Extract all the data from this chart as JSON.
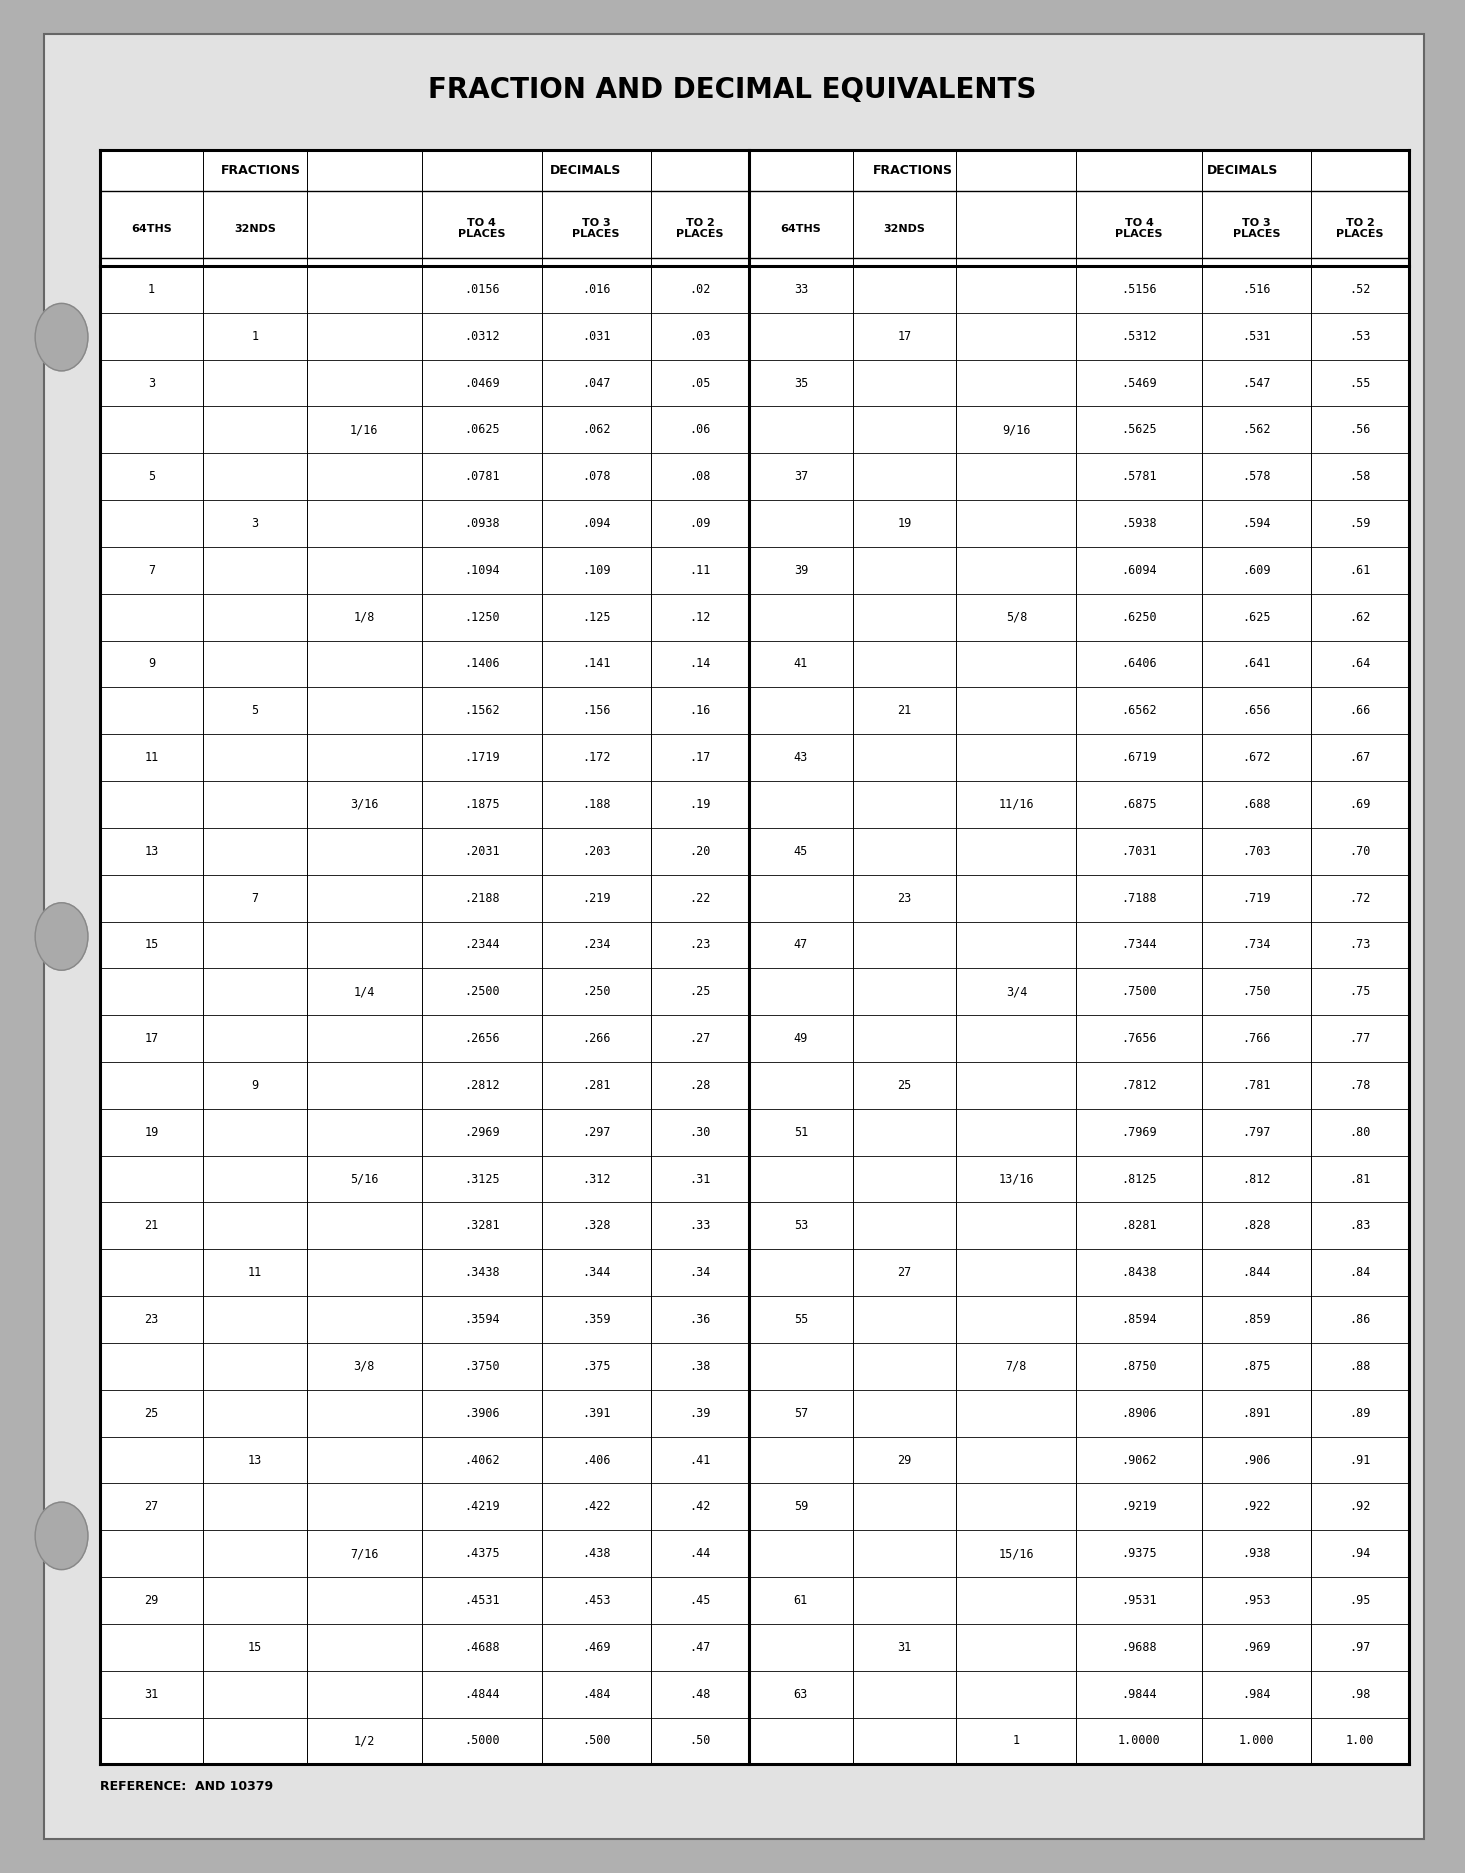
{
  "title": "FRACTION AND DECIMAL EQUIVALENTS",
  "reference": "REFERENCE:  AND 10379",
  "bg_color": "#b0b0b0",
  "paper_color": "#e2e2e2",
  "col_headers_row1": [
    "FRACTIONS",
    "DECIMALS",
    "FRACTIONS",
    "DECIMALS"
  ],
  "col_headers_row2": [
    "64THS",
    "32NDS",
    "",
    "TO 4\nPLACES",
    "TO 3\nPLACES",
    "TO 2\nPLACES",
    "64THS",
    "32NDS",
    "",
    "TO 4\nPLACES",
    "TO 3\nPLACES",
    "TO 2\nPLACES"
  ],
  "rows": [
    [
      "1",
      "",
      "",
      ".0156",
      ".016",
      ".02",
      "33",
      "",
      "",
      ".5156",
      ".516",
      ".52"
    ],
    [
      "",
      "1",
      "",
      ".0312",
      ".031",
      ".03",
      "",
      "17",
      "",
      ".5312",
      ".531",
      ".53"
    ],
    [
      "3",
      "",
      "",
      ".0469",
      ".047",
      ".05",
      "35",
      "",
      "",
      ".5469",
      ".547",
      ".55"
    ],
    [
      "",
      "",
      "1/16",
      ".0625",
      ".062",
      ".06",
      "",
      "",
      "9/16",
      ".5625",
      ".562",
      ".56"
    ],
    [
      "5",
      "",
      "",
      ".0781",
      ".078",
      ".08",
      "37",
      "",
      "",
      ".5781",
      ".578",
      ".58"
    ],
    [
      "",
      "3",
      "",
      ".0938",
      ".094",
      ".09",
      "",
      "19",
      "",
      ".5938",
      ".594",
      ".59"
    ],
    [
      "7",
      "",
      "",
      ".1094",
      ".109",
      ".11",
      "39",
      "",
      "",
      ".6094",
      ".609",
      ".61"
    ],
    [
      "",
      "",
      "1/8",
      ".1250",
      ".125",
      ".12",
      "",
      "",
      "5/8",
      ".6250",
      ".625",
      ".62"
    ],
    [
      "9",
      "",
      "",
      ".1406",
      ".141",
      ".14",
      "41",
      "",
      "",
      ".6406",
      ".641",
      ".64"
    ],
    [
      "",
      "5",
      "",
      ".1562",
      ".156",
      ".16",
      "",
      "21",
      "",
      ".6562",
      ".656",
      ".66"
    ],
    [
      "11",
      "",
      "",
      ".1719",
      ".172",
      ".17",
      "43",
      "",
      "",
      ".6719",
      ".672",
      ".67"
    ],
    [
      "",
      "",
      "3/16",
      ".1875",
      ".188",
      ".19",
      "",
      "",
      "11/16",
      ".6875",
      ".688",
      ".69"
    ],
    [
      "13",
      "",
      "",
      ".2031",
      ".203",
      ".20",
      "45",
      "",
      "",
      ".7031",
      ".703",
      ".70"
    ],
    [
      "",
      "7",
      "",
      ".2188",
      ".219",
      ".22",
      "",
      "23",
      "",
      ".7188",
      ".719",
      ".72"
    ],
    [
      "15",
      "",
      "",
      ".2344",
      ".234",
      ".23",
      "47",
      "",
      "",
      ".7344",
      ".734",
      ".73"
    ],
    [
      "",
      "",
      "1/4",
      ".2500",
      ".250",
      ".25",
      "",
      "",
      "3/4",
      ".7500",
      ".750",
      ".75"
    ],
    [
      "17",
      "",
      "",
      ".2656",
      ".266",
      ".27",
      "49",
      "",
      "",
      ".7656",
      ".766",
      ".77"
    ],
    [
      "",
      "9",
      "",
      ".2812",
      ".281",
      ".28",
      "",
      "25",
      "",
      ".7812",
      ".781",
      ".78"
    ],
    [
      "19",
      "",
      "",
      ".2969",
      ".297",
      ".30",
      "51",
      "",
      "",
      ".7969",
      ".797",
      ".80"
    ],
    [
      "",
      "",
      "5/16",
      ".3125",
      ".312",
      ".31",
      "",
      "",
      "13/16",
      ".8125",
      ".812",
      ".81"
    ],
    [
      "21",
      "",
      "",
      ".3281",
      ".328",
      ".33",
      "53",
      "",
      "",
      ".8281",
      ".828",
      ".83"
    ],
    [
      "",
      "11",
      "",
      ".3438",
      ".344",
      ".34",
      "",
      "27",
      "",
      ".8438",
      ".844",
      ".84"
    ],
    [
      "23",
      "",
      "",
      ".3594",
      ".359",
      ".36",
      "55",
      "",
      "",
      ".8594",
      ".859",
      ".86"
    ],
    [
      "",
      "",
      "3/8",
      ".3750",
      ".375",
      ".38",
      "",
      "",
      "7/8",
      ".8750",
      ".875",
      ".88"
    ],
    [
      "25",
      "",
      "",
      ".3906",
      ".391",
      ".39",
      "57",
      "",
      "",
      ".8906",
      ".891",
      ".89"
    ],
    [
      "",
      "13",
      "",
      ".4062",
      ".406",
      ".41",
      "",
      "29",
      "",
      ".9062",
      ".906",
      ".91"
    ],
    [
      "27",
      "",
      "",
      ".4219",
      ".422",
      ".42",
      "59",
      "",
      "",
      ".9219",
      ".922",
      ".92"
    ],
    [
      "",
      "",
      "7/16",
      ".4375",
      ".438",
      ".44",
      "",
      "",
      "15/16",
      ".9375",
      ".938",
      ".94"
    ],
    [
      "29",
      "",
      "",
      ".4531",
      ".453",
      ".45",
      "61",
      "",
      "",
      ".9531",
      ".953",
      ".95"
    ],
    [
      "",
      "15",
      "",
      ".4688",
      ".469",
      ".47",
      "",
      "31",
      "",
      ".9688",
      ".969",
      ".97"
    ],
    [
      "31",
      "",
      "",
      ".4844",
      ".484",
      ".48",
      "63",
      "",
      "",
      ".9844",
      ".984",
      ".98"
    ],
    [
      "",
      "",
      "1/2",
      ".5000",
      ".500",
      ".50",
      "",
      "",
      "1",
      "1.0000",
      "1.000",
      "1.00"
    ]
  ]
}
